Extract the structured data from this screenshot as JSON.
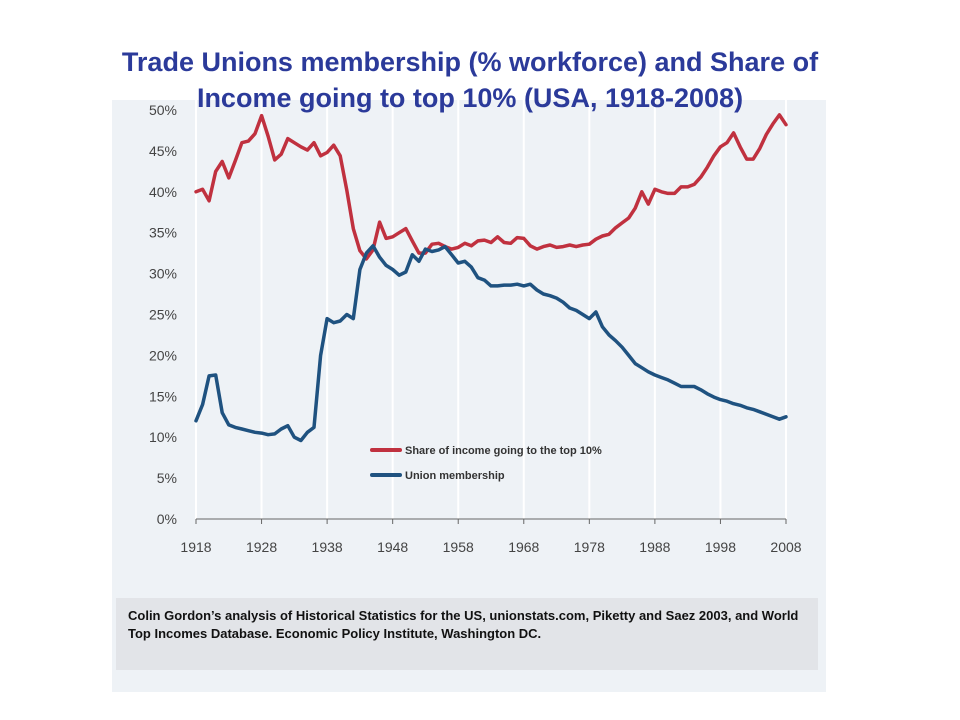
{
  "slide": {
    "title": "Trade Unions membership (% workforce) and Share of Income going to top 10% (USA, 1918-2008)",
    "caption": "Colin Gordon’s analysis of Historical Statistics for the US, unionstats.com, Piketty and Saez 2003, and World Top Incomes Database. Economic Policy Institute, Washington DC."
  },
  "colors": {
    "panel": "#eef2f6",
    "grid": "#ffffff",
    "axis_text": "#444444",
    "title": "#2b3a9a"
  },
  "chart_data": {
    "type": "line",
    "title": "Trade Unions membership (% workforce) and Share of Income going to top 10% (USA, 1918-2008)",
    "xlabel": "",
    "ylabel": "",
    "xlim": [
      1918,
      2008
    ],
    "ylim": [
      0,
      50
    ],
    "x_ticks": [
      1918,
      1928,
      1938,
      1948,
      1958,
      1968,
      1978,
      1988,
      1998,
      2008
    ],
    "y_ticks": [
      0,
      5,
      10,
      15,
      20,
      25,
      30,
      35,
      40,
      45,
      50
    ],
    "y_tick_labels": [
      "0%",
      "5%",
      "10%",
      "15%",
      "20%",
      "25%",
      "30%",
      "35%",
      "40%",
      "45%",
      "50%"
    ],
    "grid": "vertical",
    "legend_position": "lower-right",
    "series": [
      {
        "name": "Share of income going to the top 10%",
        "color": "#c0313f",
        "points": [
          [
            1918,
            40.0
          ],
          [
            1919,
            40.3
          ],
          [
            1920,
            38.9
          ],
          [
            1921,
            42.5
          ],
          [
            1922,
            43.7
          ],
          [
            1923,
            41.7
          ],
          [
            1924,
            43.8
          ],
          [
            1925,
            46.0
          ],
          [
            1926,
            46.2
          ],
          [
            1927,
            47.1
          ],
          [
            1928,
            49.3
          ],
          [
            1929,
            46.8
          ],
          [
            1930,
            43.9
          ],
          [
            1931,
            44.6
          ],
          [
            1932,
            46.5
          ],
          [
            1933,
            46.0
          ],
          [
            1934,
            45.5
          ],
          [
            1935,
            45.1
          ],
          [
            1936,
            46.0
          ],
          [
            1937,
            44.4
          ],
          [
            1938,
            44.8
          ],
          [
            1939,
            45.7
          ],
          [
            1940,
            44.4
          ],
          [
            1941,
            40.2
          ],
          [
            1942,
            35.5
          ],
          [
            1943,
            32.8
          ],
          [
            1944,
            31.8
          ],
          [
            1945,
            32.9
          ],
          [
            1946,
            36.3
          ],
          [
            1947,
            34.3
          ],
          [
            1948,
            34.5
          ],
          [
            1949,
            35.0
          ],
          [
            1950,
            35.5
          ],
          [
            1951,
            34.0
          ],
          [
            1952,
            32.5
          ],
          [
            1953,
            32.5
          ],
          [
            1954,
            33.6
          ],
          [
            1955,
            33.7
          ],
          [
            1956,
            33.3
          ],
          [
            1957,
            33.0
          ],
          [
            1958,
            33.2
          ],
          [
            1959,
            33.7
          ],
          [
            1960,
            33.4
          ],
          [
            1961,
            34.0
          ],
          [
            1962,
            34.1
          ],
          [
            1963,
            33.8
          ],
          [
            1964,
            34.5
          ],
          [
            1965,
            33.8
          ],
          [
            1966,
            33.7
          ],
          [
            1967,
            34.4
          ],
          [
            1968,
            34.3
          ],
          [
            1969,
            33.4
          ],
          [
            1970,
            33.0
          ],
          [
            1971,
            33.3
          ],
          [
            1972,
            33.5
          ],
          [
            1973,
            33.2
          ],
          [
            1974,
            33.3
          ],
          [
            1975,
            33.5
          ],
          [
            1976,
            33.3
          ],
          [
            1977,
            33.5
          ],
          [
            1978,
            33.6
          ],
          [
            1979,
            34.2
          ],
          [
            1980,
            34.6
          ],
          [
            1981,
            34.8
          ],
          [
            1982,
            35.6
          ],
          [
            1983,
            36.2
          ],
          [
            1984,
            36.8
          ],
          [
            1985,
            38.0
          ],
          [
            1986,
            40.0
          ],
          [
            1987,
            38.5
          ],
          [
            1988,
            40.3
          ],
          [
            1989,
            40.0
          ],
          [
            1990,
            39.8
          ],
          [
            1991,
            39.8
          ],
          [
            1992,
            40.6
          ],
          [
            1993,
            40.6
          ],
          [
            1994,
            40.9
          ],
          [
            1995,
            41.8
          ],
          [
            1996,
            43.0
          ],
          [
            1997,
            44.4
          ],
          [
            1998,
            45.5
          ],
          [
            1999,
            46.0
          ],
          [
            2000,
            47.2
          ],
          [
            2001,
            45.5
          ],
          [
            2002,
            44.0
          ],
          [
            2003,
            44.0
          ],
          [
            2004,
            45.3
          ],
          [
            2005,
            47.0
          ],
          [
            2006,
            48.3
          ],
          [
            2007,
            49.4
          ],
          [
            2008,
            48.2
          ]
        ]
      },
      {
        "name": "Union membership",
        "color": "#1f5280",
        "points": [
          [
            1918,
            12.0
          ],
          [
            1919,
            14.0
          ],
          [
            1920,
            17.5
          ],
          [
            1921,
            17.6
          ],
          [
            1922,
            13.0
          ],
          [
            1923,
            11.5
          ],
          [
            1924,
            11.2
          ],
          [
            1925,
            11.0
          ],
          [
            1926,
            10.8
          ],
          [
            1927,
            10.6
          ],
          [
            1928,
            10.5
          ],
          [
            1929,
            10.3
          ],
          [
            1930,
            10.4
          ],
          [
            1931,
            11.0
          ],
          [
            1932,
            11.4
          ],
          [
            1933,
            10.0
          ],
          [
            1934,
            9.6
          ],
          [
            1935,
            10.6
          ],
          [
            1936,
            11.2
          ],
          [
            1937,
            20.0
          ],
          [
            1938,
            24.5
          ],
          [
            1939,
            24.0
          ],
          [
            1940,
            24.2
          ],
          [
            1941,
            25.0
          ],
          [
            1942,
            24.5
          ],
          [
            1943,
            30.5
          ],
          [
            1944,
            32.5
          ],
          [
            1945,
            33.4
          ],
          [
            1946,
            32.0
          ],
          [
            1947,
            31.0
          ],
          [
            1948,
            30.5
          ],
          [
            1949,
            29.8
          ],
          [
            1950,
            30.2
          ],
          [
            1951,
            32.3
          ],
          [
            1952,
            31.5
          ],
          [
            1953,
            33.0
          ],
          [
            1954,
            32.7
          ],
          [
            1955,
            32.9
          ],
          [
            1956,
            33.3
          ],
          [
            1957,
            32.3
          ],
          [
            1958,
            31.3
          ],
          [
            1959,
            31.5
          ],
          [
            1960,
            30.8
          ],
          [
            1961,
            29.5
          ],
          [
            1962,
            29.2
          ],
          [
            1963,
            28.5
          ],
          [
            1964,
            28.5
          ],
          [
            1965,
            28.6
          ],
          [
            1966,
            28.6
          ],
          [
            1967,
            28.7
          ],
          [
            1968,
            28.5
          ],
          [
            1969,
            28.7
          ],
          [
            1970,
            28.0
          ],
          [
            1971,
            27.5
          ],
          [
            1972,
            27.3
          ],
          [
            1973,
            27.0
          ],
          [
            1974,
            26.5
          ],
          [
            1975,
            25.8
          ],
          [
            1976,
            25.5
          ],
          [
            1977,
            25.0
          ],
          [
            1978,
            24.5
          ],
          [
            1979,
            25.3
          ],
          [
            1980,
            23.5
          ],
          [
            1981,
            22.5
          ],
          [
            1982,
            21.8
          ],
          [
            1983,
            21.0
          ],
          [
            1984,
            20.0
          ],
          [
            1985,
            19.0
          ],
          [
            1986,
            18.5
          ],
          [
            1987,
            18.0
          ],
          [
            1988,
            17.6
          ],
          [
            1989,
            17.3
          ],
          [
            1990,
            17.0
          ],
          [
            1991,
            16.6
          ],
          [
            1992,
            16.2
          ],
          [
            1993,
            16.2
          ],
          [
            1994,
            16.2
          ],
          [
            1995,
            15.8
          ],
          [
            1996,
            15.3
          ],
          [
            1997,
            14.9
          ],
          [
            1998,
            14.6
          ],
          [
            1999,
            14.4
          ],
          [
            2000,
            14.1
          ],
          [
            2001,
            13.9
          ],
          [
            2002,
            13.6
          ],
          [
            2003,
            13.4
          ],
          [
            2004,
            13.1
          ],
          [
            2005,
            12.8
          ],
          [
            2006,
            12.5
          ],
          [
            2007,
            12.2
          ],
          [
            2008,
            12.5
          ]
        ]
      }
    ]
  }
}
